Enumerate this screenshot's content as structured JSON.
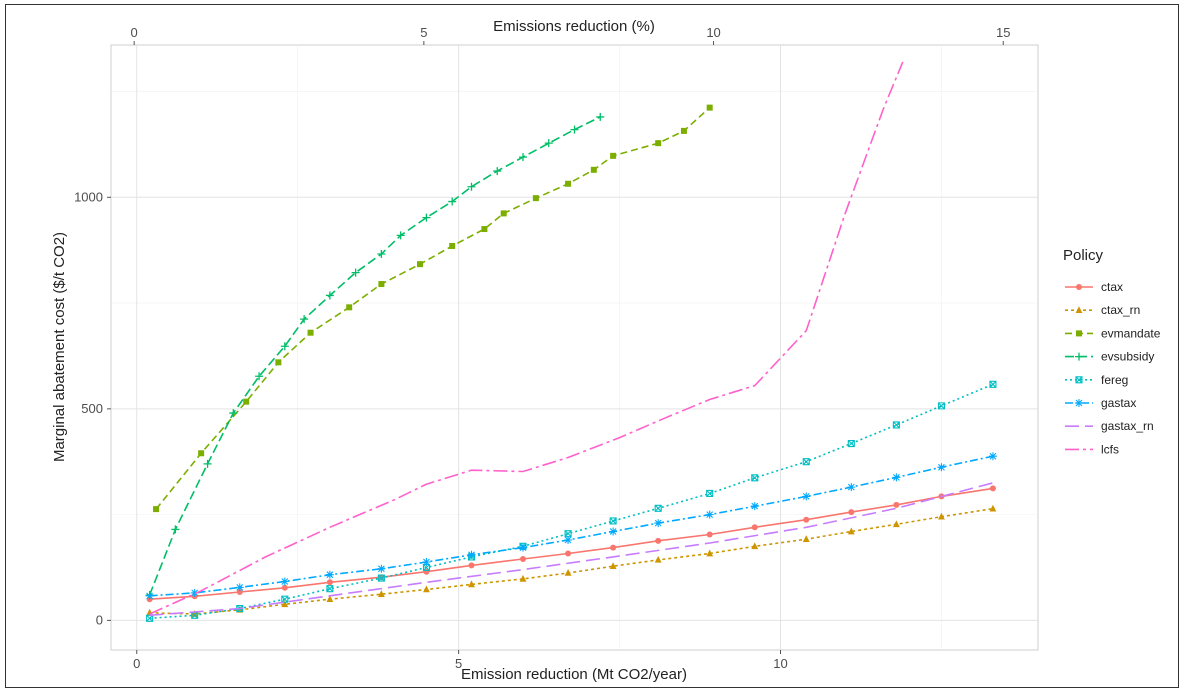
{
  "chart_data": {
    "type": "line",
    "xlabel": "Emission reduction (Mt CO2/year)",
    "x2label": "Emissions reduction (%)",
    "ylabel": "Marginal abatement cost ($/t CO2)",
    "xlim": [
      -0.4,
      14.0
    ],
    "ylim": [
      -70,
      1360
    ],
    "x2lim": [
      -0.4,
      15.6
    ],
    "x_ticks": [
      0,
      5,
      10
    ],
    "x2_ticks": [
      0,
      5,
      10,
      15
    ],
    "y_ticks": [
      0,
      500,
      1000
    ],
    "grid": true,
    "legend_title": "Policy",
    "legend_position": "right",
    "series": [
      {
        "name": "ctax",
        "color": "#F8766D",
        "dash": "",
        "marker": "circle",
        "x": [
          0.2,
          0.9,
          1.6,
          2.3,
          3.0,
          3.8,
          4.5,
          5.2,
          6.0,
          6.7,
          7.4,
          8.1,
          8.9,
          9.6,
          10.4,
          11.1,
          11.8,
          12.5,
          13.3
        ],
        "y": [
          50,
          57,
          67,
          77,
          90,
          102,
          115,
          130,
          145,
          158,
          172,
          188,
          203,
          220,
          238,
          256,
          273,
          293,
          312
        ]
      },
      {
        "name": "ctax_rn",
        "color": "#CD9600",
        "dash": "3,3",
        "marker": "triangle",
        "x": [
          0.2,
          0.9,
          1.6,
          2.3,
          3.0,
          3.8,
          4.5,
          5.2,
          6.0,
          6.7,
          7.4,
          8.1,
          8.9,
          9.6,
          10.4,
          11.1,
          11.8,
          12.5,
          13.3
        ],
        "y": [
          18,
          15,
          25,
          38,
          50,
          62,
          73,
          85,
          98,
          112,
          128,
          143,
          158,
          175,
          192,
          210,
          227,
          245,
          264
        ]
      },
      {
        "name": "evmandate",
        "color": "#7CAE00",
        "dash": "7,4",
        "marker": "square",
        "x": [
          0.3,
          1.0,
          1.7,
          2.2,
          2.7,
          3.3,
          3.8,
          4.4,
          4.9,
          5.4,
          5.7,
          6.2,
          6.7,
          7.1,
          7.4,
          8.1,
          8.5,
          8.9
        ],
        "y": [
          263,
          395,
          517,
          610,
          680,
          740,
          795,
          842,
          885,
          925,
          962,
          998,
          1032,
          1065,
          1098,
          1128,
          1157,
          1212
        ],
        "x_markers": [
          0.3,
          1.0,
          1.7,
          2.2,
          2.7,
          3.3,
          3.8,
          4.4,
          4.9,
          5.4,
          5.7,
          6.2,
          6.7,
          7.1,
          7.4,
          8.1,
          8.5,
          8.9
        ]
      },
      {
        "name": "evsubsidy",
        "color": "#00BE67",
        "dash": "9,4",
        "marker": "plus",
        "x": [
          0.2,
          0.6,
          1.1,
          1.5,
          1.9,
          2.3,
          2.6,
          3.0,
          3.4,
          3.8,
          4.1,
          4.5,
          4.9,
          5.2,
          5.6,
          6.0,
          6.4,
          6.8,
          7.2
        ],
        "y": [
          60,
          215,
          370,
          490,
          577,
          648,
          712,
          768,
          822,
          866,
          910,
          952,
          990,
          1025,
          1062,
          1095,
          1128,
          1160,
          1190
        ]
      },
      {
        "name": "fereg",
        "color": "#00BFC4",
        "dash": "2,3",
        "marker": "boxx",
        "x": [
          0.2,
          0.9,
          1.6,
          2.3,
          3.0,
          3.8,
          4.5,
          5.2,
          6.0,
          6.7,
          7.4,
          8.1,
          8.9,
          9.6,
          10.4,
          11.1,
          11.8,
          12.5,
          13.3
        ],
        "y": [
          5,
          12,
          28,
          50,
          75,
          100,
          125,
          150,
          175,
          205,
          235,
          265,
          300,
          337,
          375,
          418,
          462,
          507,
          558
        ]
      },
      {
        "name": "gastax",
        "color": "#00A9FF",
        "dash": "8,3,2,3",
        "marker": "asterisk",
        "x": [
          0.2,
          0.9,
          1.6,
          2.3,
          3.0,
          3.8,
          4.5,
          5.2,
          6.0,
          6.7,
          7.4,
          8.1,
          8.9,
          9.6,
          10.4,
          11.1,
          11.8,
          12.5,
          13.3
        ],
        "y": [
          58,
          65,
          78,
          92,
          108,
          122,
          138,
          155,
          172,
          190,
          210,
          230,
          250,
          270,
          293,
          315,
          338,
          362,
          388
        ]
      },
      {
        "name": "gastax_rn",
        "color": "#C77CFF",
        "dash": "14,6",
        "marker": "none",
        "x": [
          0.2,
          1.6,
          3.0,
          4.5,
          6.0,
          7.4,
          8.9,
          10.4,
          11.8,
          13.3
        ],
        "y": [
          12,
          28,
          58,
          90,
          120,
          150,
          183,
          220,
          265,
          325
        ]
      },
      {
        "name": "lcfs",
        "color": "#FF61CC",
        "dash": "14,4,3,4",
        "marker": "none",
        "x": [
          0.2,
          1.0,
          2.0,
          3.0,
          4.0,
          4.5,
          5.2,
          6.0,
          6.7,
          7.5,
          8.2,
          8.9,
          9.6,
          10.4,
          11.0,
          11.6,
          11.9
        ],
        "y": [
          15,
          70,
          150,
          220,
          285,
          322,
          355,
          352,
          385,
          432,
          478,
          522,
          555,
          685,
          960,
          1210,
          1320
        ]
      }
    ]
  }
}
